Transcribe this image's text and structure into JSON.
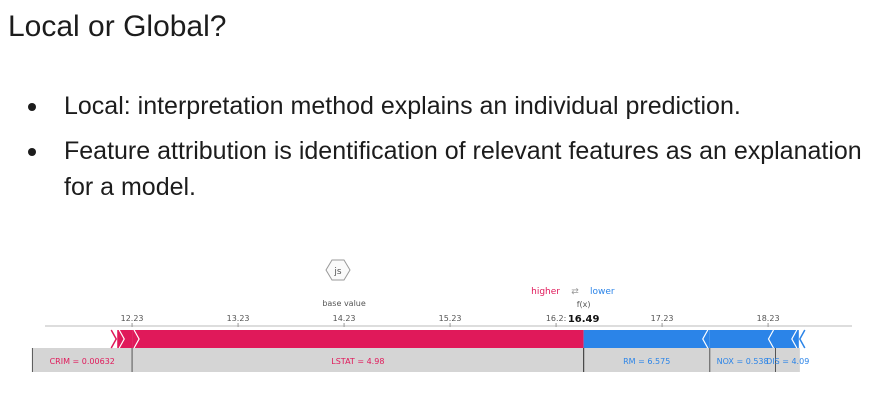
{
  "slide": {
    "title": "Local or Global?",
    "bullets": [
      "Local:  interpretation method explains an individual prediction.",
      "Feature attribution is identification of relevant features as an explanation for a model."
    ]
  },
  "chart_data": {
    "type": "force",
    "js_badge": "js",
    "base_value_label": "base value",
    "base_value": 14.23,
    "output_label": "f(x)",
    "output_value": 16.49,
    "output_value_text": "16.49",
    "legend": {
      "higher": "higher",
      "arrows": "⇄",
      "lower": "lower"
    },
    "ticks": [
      {
        "value": 12.23,
        "label": "12.23"
      },
      {
        "value": 13.23,
        "label": "13.23"
      },
      {
        "value": 14.23,
        "label": "14.23"
      },
      {
        "value": 15.23,
        "label": "15.23"
      },
      {
        "value": 16.23,
        "label": "16.2:"
      },
      {
        "value": 17.23,
        "label": "17.23"
      },
      {
        "value": 18.23,
        "label": "18.23"
      }
    ],
    "xlim": [
      11.22,
      18.55
    ],
    "positive_segments": [
      {
        "start": 12.09,
        "end": 12.23,
        "label": "CRIM = 0.00632"
      },
      {
        "start": 12.23,
        "end": 16.49,
        "label": "LSTAT = 4.98"
      }
    ],
    "negative_segments": [
      {
        "start": 16.49,
        "end": 17.68,
        "label": "RM = 6.575"
      },
      {
        "start": 17.68,
        "end": 18.3,
        "label": "NOX = 0.538"
      },
      {
        "start": 18.3,
        "end": 18.52,
        "label": "DIS = 4.09"
      }
    ],
    "colors": {
      "positive": "#e0195a",
      "negative": "#2b84e8",
      "label_box": "#d5d5d5",
      "positive_text": "#e0195a",
      "negative_text": "#2b84e8"
    }
  }
}
